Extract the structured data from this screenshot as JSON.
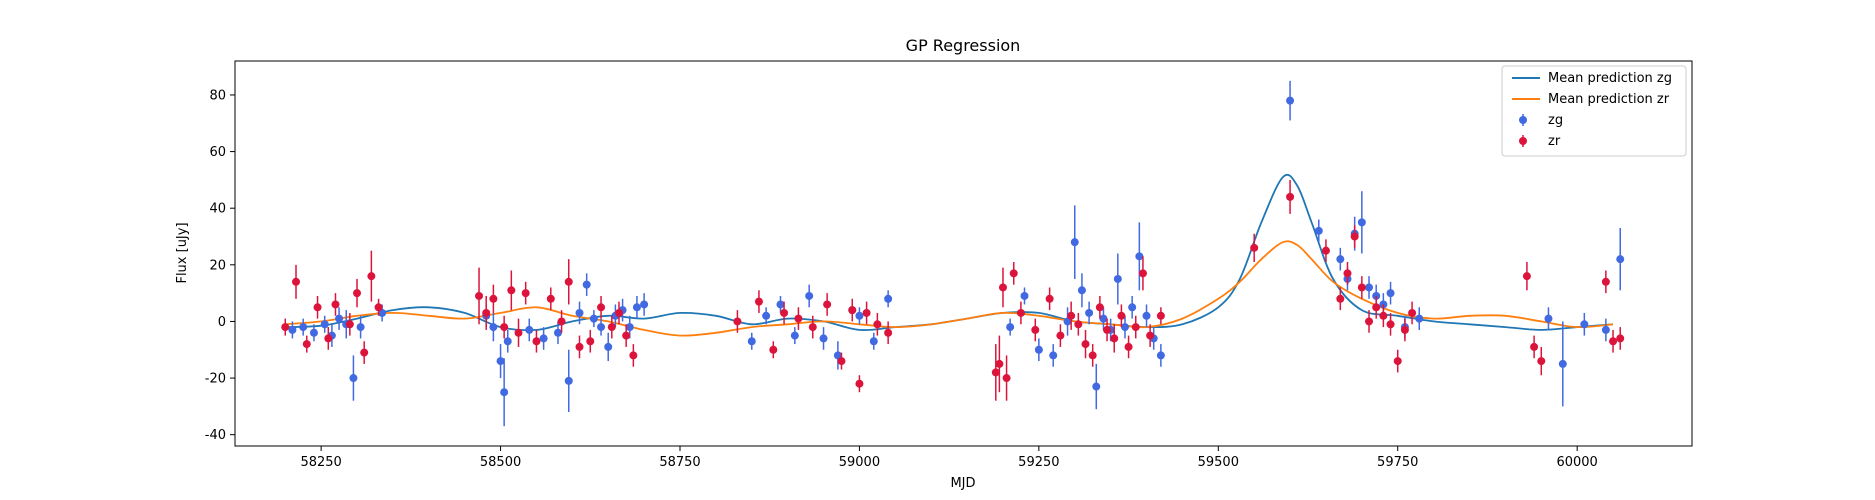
{
  "chart_data": {
    "type": "scatter",
    "title": "GP Regression",
    "xlabel": "MJD",
    "ylabel": "Flux [uJy]",
    "xlim": [
      58130,
      60160
    ],
    "ylim": [
      -44,
      92
    ],
    "xticks": [
      58250,
      58500,
      58750,
      59000,
      59250,
      59500,
      59750,
      60000
    ],
    "yticks": [
      -40,
      -20,
      0,
      20,
      40,
      60,
      80
    ],
    "grid": false,
    "legend": "top-right",
    "series": [
      {
        "name": "Mean prediction zg",
        "kind": "line",
        "color": "#1f77b4",
        "x": [
          58200,
          58250,
          58300,
          58350,
          58400,
          58450,
          58500,
          58550,
          58600,
          58650,
          58700,
          58750,
          58800,
          58850,
          58900,
          58950,
          59000,
          59050,
          59100,
          59150,
          59200,
          59250,
          59300,
          59350,
          59400,
          59450,
          59500,
          59530,
          59560,
          59590,
          59610,
          59630,
          59660,
          59700,
          59750,
          59800,
          59850,
          59900,
          59950,
          60000,
          60050
        ],
        "y": [
          -2,
          -1.5,
          1,
          4,
          5,
          3,
          -2,
          -3,
          0,
          2,
          1,
          3,
          2,
          -1,
          1,
          0,
          -3,
          -2,
          -1,
          1,
          3,
          3,
          0,
          -1,
          -2,
          -1,
          5,
          15,
          35,
          51,
          48,
          35,
          15,
          4,
          2,
          0,
          -1,
          -2,
          -3,
          -2,
          -1
        ]
      },
      {
        "name": "Mean prediction zr",
        "kind": "line",
        "color": "#ff7f0e",
        "x": [
          58200,
          58250,
          58300,
          58350,
          58400,
          58450,
          58500,
          58550,
          58600,
          58650,
          58700,
          58750,
          58800,
          58850,
          58900,
          58950,
          59000,
          59050,
          59100,
          59150,
          59200,
          59250,
          59300,
          59350,
          59400,
          59450,
          59500,
          59530,
          59560,
          59590,
          59610,
          59630,
          59660,
          59700,
          59750,
          59800,
          59850,
          59900,
          59950,
          60000,
          60050
        ],
        "y": [
          -1,
          0,
          2,
          3,
          2,
          1,
          3,
          5,
          2,
          0,
          -3,
          -5,
          -4,
          -2,
          -1,
          0,
          -1,
          -2,
          -1,
          1,
          3,
          2,
          0,
          -1,
          -2,
          1,
          8,
          14,
          22,
          28,
          27,
          22,
          14,
          8,
          3,
          1,
          2,
          2,
          0,
          -2,
          -1
        ]
      },
      {
        "name": "zg",
        "kind": "errorbar",
        "color": "#4169e1",
        "x": [
          58210,
          58225,
          58240,
          58255,
          58265,
          58275,
          58285,
          58295,
          58305,
          58335,
          58480,
          58490,
          58500,
          58505,
          58510,
          58540,
          58560,
          58580,
          58595,
          58610,
          58620,
          58630,
          58640,
          58650,
          58660,
          58670,
          58680,
          58690,
          58700,
          58850,
          58870,
          58890,
          58910,
          58930,
          58950,
          58970,
          58990,
          59000,
          59020,
          59040,
          59210,
          59230,
          59250,
          59270,
          59290,
          59300,
          59310,
          59320,
          59330,
          59340,
          59350,
          59360,
          59370,
          59380,
          59390,
          59400,
          59410,
          59420,
          59600,
          59640,
          59670,
          59680,
          59690,
          59700,
          59710,
          59720,
          59730,
          59740,
          59760,
          59780,
          59960,
          59980,
          60010,
          60040,
          60060
        ],
        "y": [
          -3,
          -2,
          -4,
          -1,
          -5,
          1,
          -1,
          -20,
          -2,
          3,
          2,
          -2,
          -14,
          -25,
          -7,
          -3,
          -6,
          -4,
          -21,
          3,
          13,
          1,
          -2,
          -9,
          2,
          4,
          -2,
          5,
          6,
          -7,
          2,
          6,
          -5,
          9,
          -6,
          -12,
          4,
          2,
          -7,
          8,
          -2,
          9,
          -10,
          -12,
          0,
          28,
          11,
          3,
          -23,
          1,
          -3,
          15,
          -2,
          5,
          23,
          2,
          -6,
          -12,
          78,
          32,
          22,
          15,
          31,
          35,
          12,
          9,
          6,
          10,
          -2,
          1,
          1,
          -15,
          -1,
          -3,
          22
        ],
        "err": [
          3,
          3,
          3,
          3,
          4,
          4,
          5,
          8,
          4,
          3,
          4,
          5,
          6,
          12,
          4,
          4,
          4,
          4,
          11,
          4,
          4,
          3,
          3,
          5,
          4,
          4,
          4,
          4,
          4,
          3,
          3,
          3,
          3,
          4,
          4,
          5,
          3,
          3,
          3,
          3,
          3,
          3,
          4,
          4,
          5,
          13,
          6,
          4,
          8,
          4,
          4,
          9,
          4,
          4,
          12,
          4,
          4,
          4,
          7,
          4,
          4,
          4,
          6,
          11,
          4,
          4,
          4,
          4,
          4,
          4,
          4,
          15,
          4,
          4,
          11
        ]
      },
      {
        "name": "zr",
        "kind": "errorbar",
        "color": "#dc143c",
        "x": [
          58200,
          58215,
          58230,
          58245,
          58260,
          58270,
          58290,
          58300,
          58310,
          58320,
          58330,
          58470,
          58480,
          58490,
          58505,
          58515,
          58525,
          58535,
          58550,
          58570,
          58585,
          58595,
          58610,
          58625,
          58640,
          58655,
          58665,
          58675,
          58685,
          58830,
          58860,
          58880,
          58895,
          58915,
          58935,
          58955,
          58975,
          58990,
          59000,
          59010,
          59025,
          59040,
          59190,
          59195,
          59200,
          59205,
          59215,
          59225,
          59245,
          59265,
          59280,
          59295,
          59305,
          59315,
          59325,
          59335,
          59345,
          59355,
          59365,
          59375,
          59385,
          59395,
          59405,
          59420,
          59550,
          59600,
          59650,
          59670,
          59680,
          59690,
          59700,
          59710,
          59720,
          59730,
          59740,
          59750,
          59760,
          59770,
          59930,
          59940,
          59950,
          60040,
          60050,
          60060
        ],
        "y": [
          -2,
          14,
          -8,
          5,
          -6,
          6,
          -1,
          10,
          -11,
          16,
          5,
          9,
          3,
          8,
          -2,
          11,
          -4,
          10,
          -7,
          8,
          0,
          14,
          -9,
          -7,
          5,
          -2,
          3,
          -5,
          -12,
          0,
          7,
          -10,
          3,
          1,
          -2,
          6,
          -14,
          4,
          -22,
          3,
          -1,
          -4,
          -18,
          -15,
          12,
          -20,
          17,
          3,
          -3,
          8,
          -5,
          2,
          -1,
          -8,
          -12,
          5,
          -3,
          -6,
          2,
          -9,
          -2,
          17,
          -5,
          2,
          26,
          44,
          25,
          8,
          17,
          30,
          12,
          0,
          5,
          2,
          -1,
          -14,
          -3,
          3,
          16,
          -9,
          -14,
          14,
          -7,
          -6
        ],
        "err": [
          3,
          6,
          3,
          4,
          4,
          4,
          4,
          5,
          4,
          9,
          3,
          10,
          6,
          5,
          4,
          7,
          5,
          4,
          4,
          4,
          4,
          8,
          4,
          4,
          4,
          4,
          4,
          4,
          4,
          4,
          4,
          3,
          4,
          4,
          4,
          4,
          3,
          4,
          3,
          4,
          4,
          4,
          10,
          10,
          7,
          8,
          4,
          4,
          4,
          4,
          4,
          5,
          4,
          5,
          4,
          4,
          4,
          5,
          4,
          4,
          4,
          6,
          4,
          3,
          5,
          6,
          4,
          4,
          4,
          4,
          4,
          4,
          4,
          4,
          4,
          4,
          4,
          4,
          5,
          4,
          5,
          4,
          4,
          4
        ]
      }
    ]
  }
}
